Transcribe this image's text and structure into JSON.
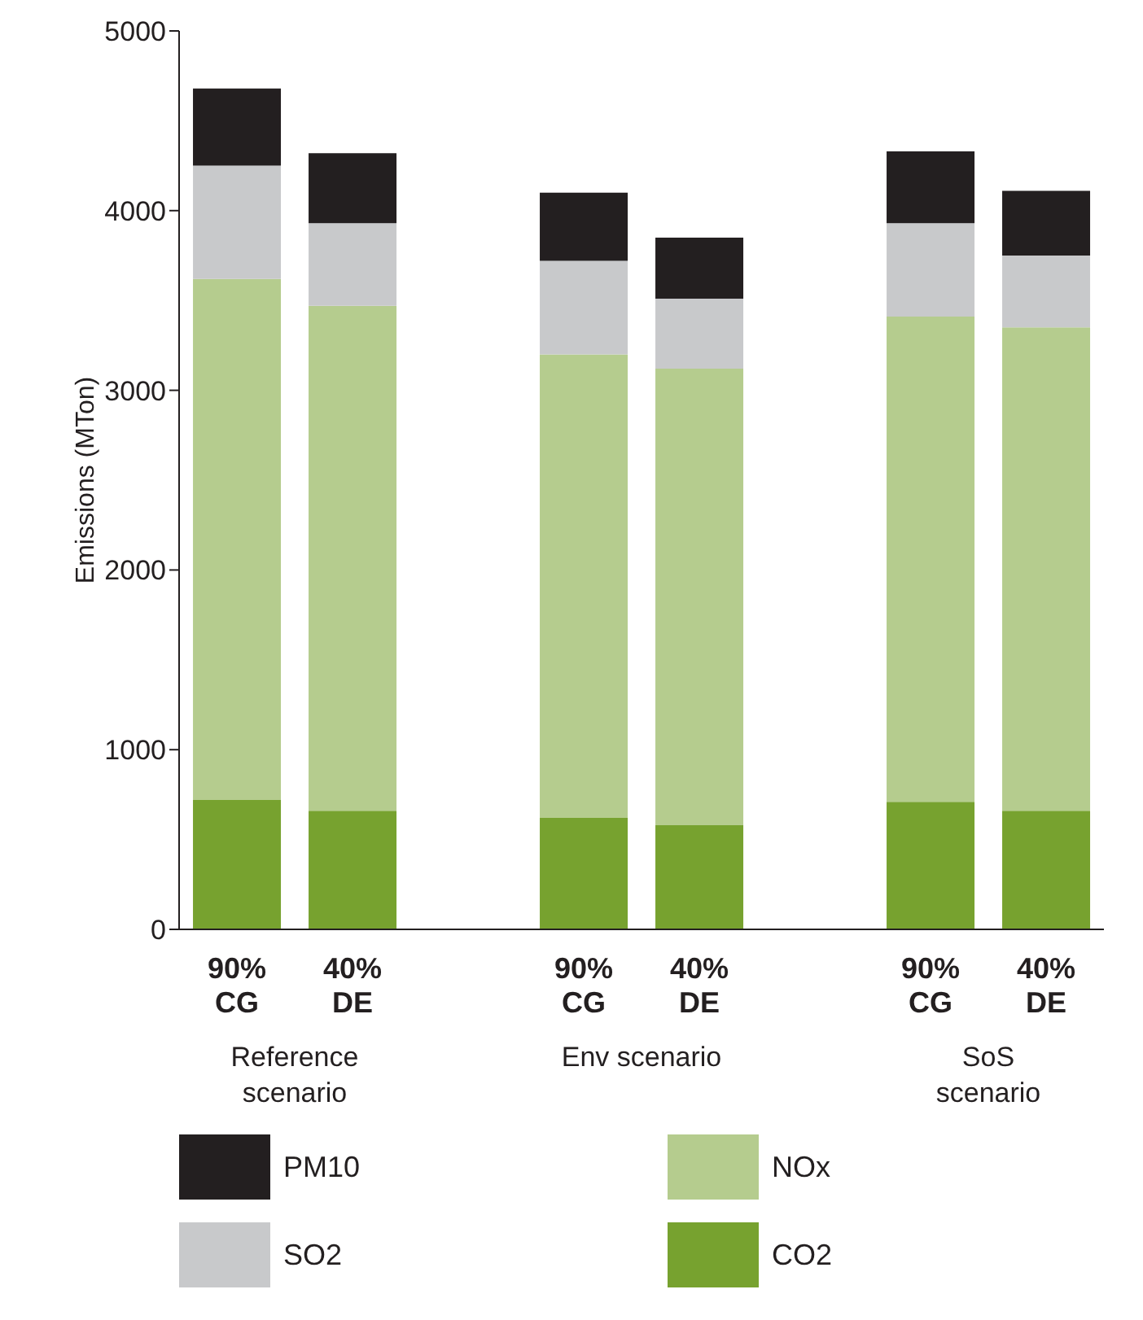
{
  "chart_data": {
    "type": "bar",
    "stacked": true,
    "ylabel": "Emissions (MTon)",
    "categories": [
      "90% CG",
      "40% DE",
      null,
      "90% CG",
      "40% DE",
      null,
      "90% CG",
      "40% DE"
    ],
    "series": [
      {
        "name": "CO2",
        "color": "#77a22f",
        "values": [
          720,
          660,
          null,
          620,
          580,
          null,
          710,
          660
        ]
      },
      {
        "name": "NOx",
        "color": "#b5cc8e",
        "values": [
          2900,
          2810,
          null,
          2580,
          2540,
          null,
          2700,
          2690
        ]
      },
      {
        "name": "SO2",
        "color": "#c8c9cb",
        "values": [
          630,
          460,
          null,
          520,
          390,
          null,
          520,
          400
        ]
      },
      {
        "name": "PM10",
        "color": "#231f20",
        "values": [
          430,
          390,
          null,
          380,
          340,
          null,
          400,
          360
        ]
      }
    ],
    "annotations": [
      "Reference scenario",
      "Env scenario",
      "SoS scenario"
    ],
    "ylim": [
      0,
      5000
    ],
    "yticks": [
      0,
      1000,
      2000,
      3000,
      4000,
      5000
    ],
    "grid": false,
    "legend": "bottom"
  }
}
